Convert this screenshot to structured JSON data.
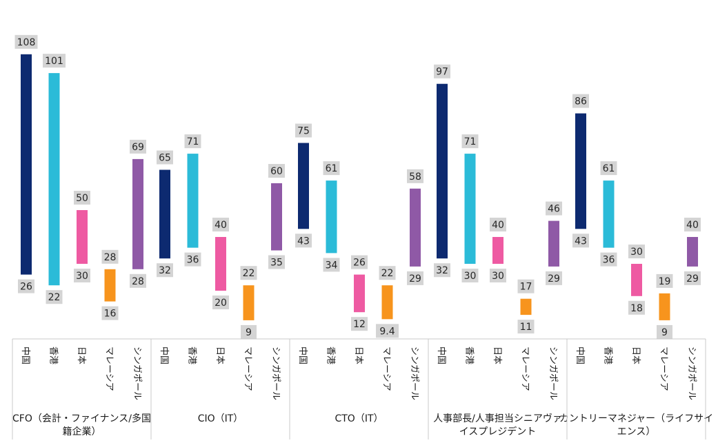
{
  "chart_data": {
    "type": "bar",
    "subtype": "floating-range",
    "title": "",
    "xlabel": "",
    "ylabel": "",
    "ylim": [
      0,
      115
    ],
    "categories": [
      "中国",
      "香港",
      "日本",
      "マレーシア",
      "シンガポール"
    ],
    "colors": [
      "#0d2a70",
      "#2bbbd8",
      "#ee5aa2",
      "#f7941d",
      "#8f59a6"
    ],
    "groups": [
      {
        "label_lines": [
          "CFO（会計・ファイナンス/多国",
          "籍企業）"
        ],
        "ranges": [
          [
            26,
            108
          ],
          [
            22,
            101
          ],
          [
            30,
            50
          ],
          [
            16,
            28
          ],
          [
            28,
            69
          ]
        ]
      },
      {
        "label_lines": [
          "CIO（IT）"
        ],
        "ranges": [
          [
            32,
            65
          ],
          [
            36,
            71
          ],
          [
            20,
            40
          ],
          [
            9,
            22
          ],
          [
            35,
            60
          ]
        ]
      },
      {
        "label_lines": [
          "CTO（IT）"
        ],
        "ranges": [
          [
            43,
            75
          ],
          [
            34,
            61
          ],
          [
            12,
            26
          ],
          [
            9.4,
            22
          ],
          [
            29,
            58
          ]
        ]
      },
      {
        "label_lines": [
          "人事部長/人事担当シニアヴァ",
          "イスプレジデント"
        ],
        "ranges": [
          [
            32,
            97
          ],
          [
            30,
            71
          ],
          [
            30,
            40
          ],
          [
            11,
            17
          ],
          [
            29,
            46
          ]
        ]
      },
      {
        "label_lines": [
          "カントリーマネジャー（ライフサイ",
          "エンス）"
        ],
        "ranges": [
          [
            43,
            86
          ],
          [
            36,
            61
          ],
          [
            18,
            30
          ],
          [
            9,
            19
          ],
          [
            29,
            40
          ]
        ]
      }
    ]
  }
}
